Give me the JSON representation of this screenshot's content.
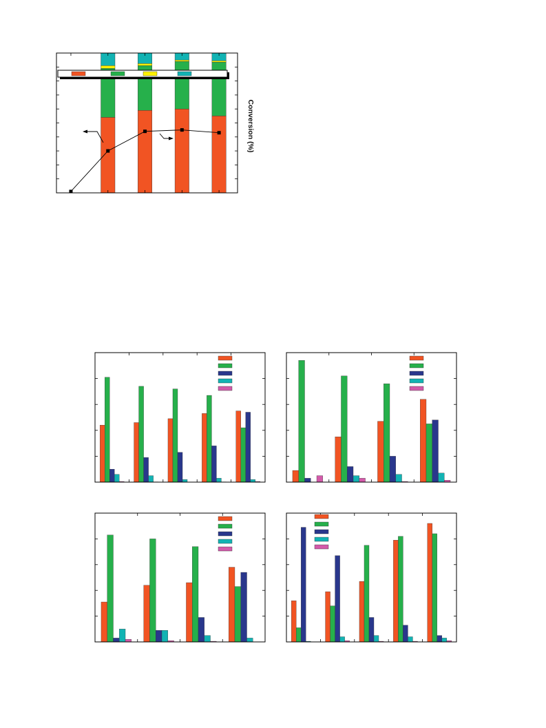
{
  "page": {
    "background": "#ffffff"
  },
  "chart_data": [
    {
      "type": "bar",
      "stacked": true,
      "y2label": "Conversion (%)",
      "ylim": [
        0,
        100
      ],
      "y2lim": [
        0,
        100
      ],
      "ytick_step": 10,
      "grid": false,
      "legend": "top",
      "series": [
        {
          "color": "#f15423",
          "values": [
            null,
            54,
            59,
            60,
            55
          ]
        },
        {
          "color": "#26b04b",
          "values": [
            null,
            35,
            32,
            34,
            38.5
          ]
        },
        {
          "color": "#fff200",
          "values": [
            null,
            2,
            1.5,
            1,
            1
          ]
        },
        {
          "color": "#12b3b3",
          "values": [
            null,
            9,
            7.5,
            5,
            5.5
          ]
        }
      ],
      "line": {
        "type": "line",
        "axis": "right",
        "marker": "square",
        "color": "#000000",
        "values": [
          1,
          30,
          44,
          45,
          43
        ]
      }
    },
    {
      "type": "bar",
      "ylim": [
        0,
        100
      ],
      "ytick_step": 20,
      "grid": false,
      "legend": "top-right",
      "series": [
        {
          "color": "#f15423",
          "values": [
            44,
            46,
            49,
            53,
            55
          ]
        },
        {
          "color": "#26b04b",
          "values": [
            81,
            74,
            72,
            67,
            42
          ]
        },
        {
          "color": "#29378c",
          "values": [
            10,
            19,
            23,
            28,
            54
          ]
        },
        {
          "color": "#12b3b3",
          "values": [
            6,
            5,
            2,
            3,
            2
          ]
        },
        {
          "color": "#d35aaa",
          "values": [
            0.5,
            0.2,
            0,
            0.2,
            0.5
          ]
        }
      ]
    },
    {
      "type": "bar",
      "ylim": [
        0,
        100
      ],
      "ytick_step": 20,
      "grid": false,
      "legend": "top-right",
      "series": [
        {
          "color": "#f15423",
          "values": [
            9,
            35,
            47,
            64
          ]
        },
        {
          "color": "#26b04b",
          "values": [
            94,
            82,
            76,
            45
          ]
        },
        {
          "color": "#29378c",
          "values": [
            3,
            12,
            20,
            48
          ]
        },
        {
          "color": "#12b3b3",
          "values": [
            0,
            5,
            6,
            7
          ]
        },
        {
          "color": "#d35aaa",
          "values": [
            5,
            3,
            0.5,
            1.5
          ]
        }
      ]
    },
    {
      "type": "bar",
      "ylim": [
        0,
        100
      ],
      "ytick_step": 20,
      "grid": false,
      "legend": "top-right",
      "series": [
        {
          "color": "#f15423",
          "values": [
            31,
            44,
            46,
            58
          ]
        },
        {
          "color": "#26b04b",
          "values": [
            83,
            80,
            74,
            43
          ]
        },
        {
          "color": "#29378c",
          "values": [
            3,
            9,
            19,
            54
          ]
        },
        {
          "color": "#12b3b3",
          "values": [
            10,
            9,
            5,
            3
          ]
        },
        {
          "color": "#d35aaa",
          "values": [
            2,
            1,
            0.5,
            0
          ]
        }
      ]
    },
    {
      "type": "bar",
      "ylim": [
        0,
        100
      ],
      "ytick_step": 20,
      "grid": false,
      "legend": "top-left",
      "series": [
        {
          "color": "#f15423",
          "values": [
            32,
            39,
            47,
            79,
            92
          ]
        },
        {
          "color": "#26b04b",
          "values": [
            11,
            28,
            75,
            82,
            84
          ]
        },
        {
          "color": "#29378c",
          "values": [
            89,
            67,
            19,
            13,
            5
          ]
        },
        {
          "color": "#12b3b3",
          "values": [
            0.5,
            4,
            5,
            4,
            3
          ]
        },
        {
          "color": "#d35aaa",
          "values": [
            0,
            1,
            0.5,
            0.5,
            1
          ]
        }
      ]
    }
  ]
}
